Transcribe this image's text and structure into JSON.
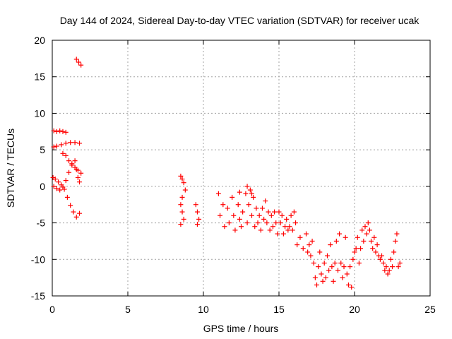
{
  "chart_data": {
    "type": "scatter",
    "title": "Day 144 of 2024, Sidereal Day-to-day VTEC variation (SDTVAR) for receiver ucak",
    "xlabel": "GPS time / hours",
    "ylabel": "SDTVAR / TECUs",
    "xlim": [
      0,
      25
    ],
    "ylim": [
      -15,
      20
    ],
    "xticks": [
      "0",
      "5",
      "10",
      "15",
      "20",
      "25"
    ],
    "yticks": [
      "-15",
      "-10",
      "-5",
      "0",
      "5",
      "10",
      "15",
      "20"
    ],
    "grid": true,
    "marker": "+",
    "color": "#ff0000",
    "series": [
      {
        "name": "ucak",
        "points": [
          [
            0.1,
            7.6
          ],
          [
            0.3,
            7.5
          ],
          [
            0.5,
            7.6
          ],
          [
            0.7,
            7.5
          ],
          [
            0.9,
            7.4
          ],
          [
            0.1,
            5.4
          ],
          [
            0.3,
            5.5
          ],
          [
            0.6,
            5.7
          ],
          [
            0.9,
            5.9
          ],
          [
            1.2,
            6.0
          ],
          [
            1.5,
            6.0
          ],
          [
            1.8,
            5.9
          ],
          [
            0.05,
            1.2
          ],
          [
            0.2,
            1.0
          ],
          [
            0.4,
            0.6
          ],
          [
            0.6,
            0.2
          ],
          [
            0.8,
            -0.4
          ],
          [
            1.0,
            -1.5
          ],
          [
            1.2,
            -2.6
          ],
          [
            1.4,
            -3.5
          ],
          [
            1.6,
            -4.2
          ],
          [
            1.8,
            -3.7
          ],
          [
            0.1,
            0.0
          ],
          [
            0.3,
            -0.3
          ],
          [
            0.5,
            -0.5
          ],
          [
            0.7,
            -0.1
          ],
          [
            0.9,
            0.8
          ],
          [
            1.1,
            1.9
          ],
          [
            1.3,
            2.9
          ],
          [
            1.5,
            3.5
          ],
          [
            1.6,
            2.3
          ],
          [
            1.7,
            1.2
          ],
          [
            1.8,
            0.6
          ],
          [
            0.7,
            4.5
          ],
          [
            0.9,
            4.2
          ],
          [
            1.1,
            3.5
          ],
          [
            1.3,
            3.1
          ],
          [
            1.5,
            2.6
          ],
          [
            1.7,
            2.2
          ],
          [
            1.9,
            1.8
          ],
          [
            1.6,
            17.4
          ],
          [
            1.75,
            17.0
          ],
          [
            1.9,
            16.6
          ],
          [
            8.5,
            1.4
          ],
          [
            8.6,
            1.0
          ],
          [
            8.7,
            0.5
          ],
          [
            8.6,
            -1.5
          ],
          [
            8.5,
            -2.5
          ],
          [
            8.6,
            -3.5
          ],
          [
            8.7,
            -4.5
          ],
          [
            8.5,
            -5.2
          ],
          [
            8.8,
            -0.5
          ],
          [
            9.5,
            -2.5
          ],
          [
            9.6,
            -3.5
          ],
          [
            9.7,
            -4.5
          ],
          [
            9.6,
            -5.2
          ],
          [
            11.0,
            -1.0
          ],
          [
            11.1,
            -4.0
          ],
          [
            11.3,
            -2.5
          ],
          [
            11.4,
            -5.5
          ],
          [
            11.6,
            -3.0
          ],
          [
            11.7,
            -5.0
          ],
          [
            11.9,
            -1.5
          ],
          [
            12.0,
            -4.0
          ],
          [
            12.1,
            -6.0
          ],
          [
            12.3,
            -2.5
          ],
          [
            12.4,
            -4.5
          ],
          [
            12.5,
            -5.5
          ],
          [
            12.6,
            -3.5
          ],
          [
            12.8,
            -1.0
          ],
          [
            12.9,
            -5.0
          ],
          [
            13.0,
            -2.5
          ],
          [
            13.1,
            -0.5
          ],
          [
            13.2,
            -4.0
          ],
          [
            13.3,
            -1.5
          ],
          [
            13.4,
            -5.5
          ],
          [
            13.5,
            -3.0
          ],
          [
            13.6,
            -5.0
          ],
          [
            13.7,
            -4.0
          ],
          [
            13.8,
            -6.0
          ],
          [
            13.9,
            -3.0
          ],
          [
            14.0,
            -4.5
          ],
          [
            14.1,
            -2.0
          ],
          [
            14.2,
            -5.0
          ],
          [
            14.3,
            -3.5
          ],
          [
            14.4,
            -6.0
          ],
          [
            14.5,
            -4.0
          ],
          [
            14.6,
            -5.5
          ],
          [
            14.7,
            -3.5
          ],
          [
            14.8,
            -5.0
          ],
          [
            14.9,
            -6.5
          ],
          [
            15.0,
            -3.5
          ],
          [
            15.1,
            -5.0
          ],
          [
            15.2,
            -4.0
          ],
          [
            15.3,
            -6.5
          ],
          [
            15.4,
            -5.5
          ],
          [
            15.5,
            -4.5
          ],
          [
            15.6,
            -6.0
          ],
          [
            15.7,
            -5.5
          ],
          [
            15.8,
            -4.0
          ],
          [
            15.9,
            -6.0
          ],
          [
            16.0,
            -3.5
          ],
          [
            16.1,
            -5.0
          ],
          [
            12.9,
            0.0
          ],
          [
            13.2,
            -1.0
          ],
          [
            12.4,
            -0.8
          ],
          [
            16.2,
            -8.0
          ],
          [
            16.4,
            -7.0
          ],
          [
            16.6,
            -8.5
          ],
          [
            16.8,
            -6.5
          ],
          [
            16.9,
            -9.0
          ],
          [
            17.0,
            -8.0
          ],
          [
            17.1,
            -9.5
          ],
          [
            17.2,
            -7.5
          ],
          [
            17.3,
            -10.5
          ],
          [
            17.4,
            -12.5
          ],
          [
            17.5,
            -13.5
          ],
          [
            17.6,
            -11.0
          ],
          [
            17.7,
            -9.0
          ],
          [
            17.8,
            -12.0
          ],
          [
            17.9,
            -13.0
          ],
          [
            18.0,
            -10.5
          ],
          [
            18.1,
            -12.5
          ],
          [
            18.2,
            -9.5
          ],
          [
            18.3,
            -11.5
          ],
          [
            18.4,
            -8.0
          ],
          [
            18.5,
            -11.0
          ],
          [
            18.6,
            -13.0
          ],
          [
            18.7,
            -10.5
          ],
          [
            18.8,
            -7.5
          ],
          [
            18.9,
            -11.5
          ],
          [
            19.0,
            -6.5
          ],
          [
            19.1,
            -10.5
          ],
          [
            19.2,
            -12.5
          ],
          [
            19.3,
            -11.0
          ],
          [
            19.4,
            -7.0
          ],
          [
            19.5,
            -12.0
          ],
          [
            19.6,
            -13.5
          ],
          [
            19.7,
            -11.0
          ],
          [
            19.8,
            -13.8
          ],
          [
            19.9,
            -10.0
          ],
          [
            20.0,
            -9.0
          ],
          [
            20.1,
            -8.5
          ],
          [
            20.2,
            -7.0
          ],
          [
            20.3,
            -10.5
          ],
          [
            20.4,
            -8.5
          ],
          [
            20.5,
            -6.0
          ],
          [
            20.6,
            -7.5
          ],
          [
            20.7,
            -5.5
          ],
          [
            20.8,
            -6.5
          ],
          [
            20.9,
            -5.0
          ],
          [
            21.0,
            -6.0
          ],
          [
            21.1,
            -7.5
          ],
          [
            21.2,
            -8.5
          ],
          [
            21.3,
            -7.0
          ],
          [
            21.4,
            -9.0
          ],
          [
            21.5,
            -8.0
          ],
          [
            21.6,
            -9.5
          ],
          [
            21.7,
            -10.0
          ],
          [
            21.8,
            -9.5
          ],
          [
            21.9,
            -10.5
          ],
          [
            22.0,
            -11.5
          ],
          [
            22.1,
            -11.0
          ],
          [
            22.2,
            -12.0
          ],
          [
            22.3,
            -11.5
          ],
          [
            22.4,
            -10.0
          ],
          [
            22.5,
            -11.0
          ],
          [
            22.6,
            -9.0
          ],
          [
            22.7,
            -7.5
          ],
          [
            22.8,
            -6.5
          ],
          [
            22.9,
            -11.0
          ],
          [
            23.0,
            -10.5
          ]
        ]
      }
    ]
  }
}
